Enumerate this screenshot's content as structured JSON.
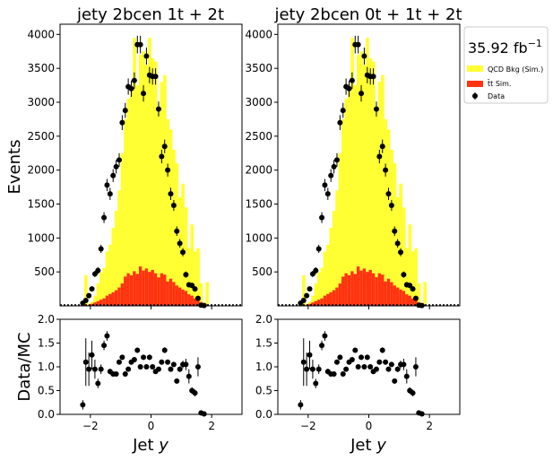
{
  "colors": {
    "qcd": "#ffff33",
    "ttbar": "#ff3311",
    "data": "#000000"
  },
  "figure": {
    "ylabel_main": "Events",
    "ylabel_ratio": "Data/MC",
    "lumi": "35.92 fb",
    "lumi_sup": "−1"
  },
  "legend": {
    "placement": "right-outside",
    "entries": [
      {
        "label": "QCD Bkg (Sim.)",
        "kind": "fill",
        "color": "#ffff33"
      },
      {
        "label": "t̄t Sim.",
        "kind": "fill",
        "color": "#ff3311"
      },
      {
        "label": "Data",
        "kind": "marker",
        "color": "#000000"
      }
    ]
  },
  "chart_data": [
    {
      "type": "bar",
      "title": "jety  2bcen 1t + 2t",
      "xlabel": "Jet y",
      "xlim": [
        -3,
        3
      ],
      "ylim": [
        0,
        4150
      ],
      "ratio_ylim": [
        0,
        2
      ],
      "x_ticks": [
        "−2",
        "0",
        "2"
      ],
      "y_ticks": [
        "500",
        "1000",
        "1500",
        "2000",
        "2500",
        "3000",
        "3500",
        "4000"
      ],
      "ratio_y_ticks": [
        "0.0",
        "0.5",
        "1.0",
        "1.5",
        "2.0"
      ],
      "bin_edges_x": [
        -3.0,
        3.0
      ],
      "bin_width": 0.1,
      "qcd_total": [
        0,
        0,
        0,
        0,
        0,
        0,
        0,
        0,
        450,
        30,
        60,
        150,
        330,
        490,
        560,
        800,
        900,
        1150,
        1400,
        1700,
        2250,
        2750,
        3050,
        3150,
        3950,
        3250,
        3700,
        3750,
        3550,
        3950,
        3650,
        3600,
        2850,
        3300,
        3400,
        2750,
        2600,
        2300,
        2100,
        1600,
        1800,
        1450,
        850,
        1200,
        800,
        850,
        330,
        0,
        350,
        0,
        0,
        0,
        0,
        0,
        0,
        0,
        0,
        0,
        0,
        0
      ],
      "ttbar": [
        0,
        0,
        0,
        0,
        0,
        0,
        0,
        0,
        10,
        15,
        30,
        50,
        70,
        90,
        110,
        150,
        175,
        200,
        230,
        270,
        330,
        430,
        480,
        450,
        510,
        470,
        580,
        520,
        550,
        500,
        530,
        480,
        420,
        480,
        460,
        360,
        400,
        350,
        300,
        270,
        240,
        220,
        170,
        150,
        110,
        80,
        50,
        20,
        20,
        0,
        0,
        0,
        0,
        0,
        0,
        0,
        0,
        0,
        0,
        0
      ],
      "data_points": [
        {
          "x": -2.25,
          "y": 40,
          "err": 20,
          "r": 0.2,
          "rerr": 0.1
        },
        {
          "x": -2.15,
          "y": 80,
          "err": 25,
          "r": 1.1,
          "rerr": 0.5
        },
        {
          "x": -2.05,
          "y": 150,
          "err": 30,
          "r": 0.95,
          "rerr": 0.35
        },
        {
          "x": -1.95,
          "y": 250,
          "err": 35,
          "r": 1.25,
          "rerr": 0.3
        },
        {
          "x": -1.85,
          "y": 470,
          "err": 45,
          "r": 0.95,
          "rerr": 0.2
        },
        {
          "x": -1.75,
          "y": 520,
          "err": 50,
          "r": 0.65,
          "rerr": 0.1
        },
        {
          "x": -1.65,
          "y": 840,
          "err": 60,
          "r": 0.95,
          "rerr": 0.1
        },
        {
          "x": -1.55,
          "y": 1300,
          "err": 80,
          "r": 1.45,
          "rerr": 0.1
        },
        {
          "x": -1.45,
          "y": 1780,
          "err": 90,
          "r": 1.65,
          "rerr": 0.1
        },
        {
          "x": -1.35,
          "y": 1650,
          "err": 90,
          "r": 0.9,
          "rerr": 0.06
        },
        {
          "x": -1.25,
          "y": 1920,
          "err": 95,
          "r": 0.85,
          "rerr": 0.05
        },
        {
          "x": -1.15,
          "y": 2050,
          "err": 100,
          "r": 0.85,
          "rerr": 0.05
        },
        {
          "x": -1.05,
          "y": 2150,
          "err": 100,
          "r": 1.1,
          "rerr": 0.05
        },
        {
          "x": -0.95,
          "y": 2700,
          "err": 110,
          "r": 1.2,
          "rerr": 0.05
        },
        {
          "x": -0.85,
          "y": 2880,
          "err": 110,
          "r": 0.85,
          "rerr": 0.05
        },
        {
          "x": -0.75,
          "y": 3230,
          "err": 120,
          "r": 0.95,
          "rerr": 0.05
        },
        {
          "x": -0.65,
          "y": 3200,
          "err": 120,
          "r": 1.1,
          "rerr": 0.05
        },
        {
          "x": -0.55,
          "y": 3320,
          "err": 120,
          "r": 1.15,
          "rerr": 0.05
        },
        {
          "x": -0.45,
          "y": 3850,
          "err": 130,
          "r": 1.35,
          "rerr": 0.05
        },
        {
          "x": -0.35,
          "y": 3850,
          "err": 130,
          "r": 1.0,
          "rerr": 0.04
        },
        {
          "x": -0.25,
          "y": 3130,
          "err": 120,
          "r": 1.2,
          "rerr": 0.05
        },
        {
          "x": -0.15,
          "y": 3680,
          "err": 125,
          "r": 1.0,
          "rerr": 0.04
        },
        {
          "x": -0.05,
          "y": 3400,
          "err": 120,
          "r": 1.2,
          "rerr": 0.05
        },
        {
          "x": 0.05,
          "y": 3380,
          "err": 120,
          "r": 1.0,
          "rerr": 0.04
        },
        {
          "x": 0.15,
          "y": 3380,
          "err": 120,
          "r": 0.9,
          "rerr": 0.04
        },
        {
          "x": 0.25,
          "y": 2900,
          "err": 110,
          "r": 0.95,
          "rerr": 0.04
        },
        {
          "x": 0.35,
          "y": 2200,
          "err": 100,
          "r": 1.1,
          "rerr": 0.05
        },
        {
          "x": 0.45,
          "y": 2350,
          "err": 100,
          "r": 1.35,
          "rerr": 0.06
        },
        {
          "x": 0.55,
          "y": 2000,
          "err": 95,
          "r": 1.1,
          "rerr": 0.05
        },
        {
          "x": 0.65,
          "y": 1650,
          "err": 90,
          "r": 0.95,
          "rerr": 0.05
        },
        {
          "x": 0.75,
          "y": 1480,
          "err": 80,
          "r": 1.05,
          "rerr": 0.05
        },
        {
          "x": 0.85,
          "y": 1100,
          "err": 70,
          "r": 0.7,
          "rerr": 0.05
        },
        {
          "x": 0.95,
          "y": 920,
          "err": 65,
          "r": 0.95,
          "rerr": 0.06
        },
        {
          "x": 1.05,
          "y": 790,
          "err": 60,
          "r": 1.05,
          "rerr": 0.08
        },
        {
          "x": 1.15,
          "y": 460,
          "err": 45,
          "r": 1.05,
          "rerr": 0.12
        },
        {
          "x": 1.25,
          "y": 310,
          "err": 40,
          "r": 0.8,
          "rerr": 0.15
        },
        {
          "x": 1.35,
          "y": 300,
          "err": 40,
          "r": 0.5,
          "rerr": 0.07
        },
        {
          "x": 1.45,
          "y": 250,
          "err": 35,
          "r": 0.45,
          "rerr": 0.07
        },
        {
          "x": 1.55,
          "y": 110,
          "err": 25,
          "r": 1.0,
          "rerr": 0.2
        },
        {
          "x": 1.65,
          "y": 10,
          "err": 5,
          "r": 0.03,
          "rerr": 0.03
        },
        {
          "x": 1.75,
          "y": 5,
          "err": 3,
          "r": 0.01,
          "rerr": 0.01
        }
      ]
    },
    {
      "type": "bar",
      "title": "jety  2bcen 0t + 1t + 2t",
      "xlabel": "Jet y",
      "xlim": [
        -3,
        3
      ],
      "ylim": [
        0,
        4150
      ],
      "ratio_ylim": [
        0,
        2
      ],
      "x_ticks": [
        "−2",
        "0",
        "2"
      ],
      "y_ticks": [
        "500",
        "1000",
        "1500",
        "2000",
        "2500",
        "3000",
        "3500",
        "4000"
      ],
      "ratio_y_ticks": [
        "0.0",
        "0.5",
        "1.0",
        "1.5",
        "2.0"
      ],
      "bin_edges_x": [
        -3.0,
        3.0
      ],
      "bin_width": 0.1,
      "qcd_total": [
        0,
        0,
        0,
        0,
        0,
        0,
        0,
        0,
        450,
        30,
        60,
        150,
        330,
        490,
        560,
        800,
        900,
        1150,
        1400,
        1700,
        2250,
        2750,
        3050,
        3150,
        3950,
        3250,
        3700,
        3750,
        3550,
        3950,
        3650,
        3600,
        2850,
        3300,
        3400,
        2750,
        2600,
        2300,
        2100,
        1600,
        1800,
        1450,
        850,
        1200,
        800,
        850,
        330,
        0,
        350,
        0,
        0,
        0,
        0,
        0,
        0,
        0,
        0,
        0,
        0,
        0
      ],
      "ttbar": [
        0,
        0,
        0,
        0,
        0,
        0,
        0,
        0,
        10,
        15,
        30,
        50,
        70,
        90,
        110,
        150,
        175,
        200,
        230,
        270,
        330,
        430,
        480,
        450,
        510,
        470,
        580,
        520,
        550,
        500,
        530,
        480,
        420,
        480,
        460,
        360,
        400,
        350,
        300,
        270,
        240,
        220,
        170,
        150,
        110,
        80,
        50,
        20,
        20,
        0,
        0,
        0,
        0,
        0,
        0,
        0,
        0,
        0,
        0,
        0
      ],
      "data_points": [
        {
          "x": -2.25,
          "y": 40,
          "err": 20,
          "r": 0.2,
          "rerr": 0.1
        },
        {
          "x": -2.15,
          "y": 80,
          "err": 25,
          "r": 1.1,
          "rerr": 0.5
        },
        {
          "x": -2.05,
          "y": 150,
          "err": 30,
          "r": 0.95,
          "rerr": 0.35
        },
        {
          "x": -1.95,
          "y": 250,
          "err": 35,
          "r": 1.25,
          "rerr": 0.3
        },
        {
          "x": -1.85,
          "y": 470,
          "err": 45,
          "r": 0.95,
          "rerr": 0.2
        },
        {
          "x": -1.75,
          "y": 520,
          "err": 50,
          "r": 0.65,
          "rerr": 0.1
        },
        {
          "x": -1.65,
          "y": 840,
          "err": 60,
          "r": 0.95,
          "rerr": 0.1
        },
        {
          "x": -1.55,
          "y": 1300,
          "err": 80,
          "r": 1.45,
          "rerr": 0.1
        },
        {
          "x": -1.45,
          "y": 1780,
          "err": 90,
          "r": 1.65,
          "rerr": 0.1
        },
        {
          "x": -1.35,
          "y": 1650,
          "err": 90,
          "r": 0.9,
          "rerr": 0.06
        },
        {
          "x": -1.25,
          "y": 1920,
          "err": 95,
          "r": 0.85,
          "rerr": 0.05
        },
        {
          "x": -1.15,
          "y": 2050,
          "err": 100,
          "r": 0.85,
          "rerr": 0.05
        },
        {
          "x": -1.05,
          "y": 2150,
          "err": 100,
          "r": 1.1,
          "rerr": 0.05
        },
        {
          "x": -0.95,
          "y": 2700,
          "err": 110,
          "r": 1.2,
          "rerr": 0.05
        },
        {
          "x": -0.85,
          "y": 2880,
          "err": 110,
          "r": 0.85,
          "rerr": 0.05
        },
        {
          "x": -0.75,
          "y": 3230,
          "err": 120,
          "r": 0.95,
          "rerr": 0.05
        },
        {
          "x": -0.65,
          "y": 3200,
          "err": 120,
          "r": 1.1,
          "rerr": 0.05
        },
        {
          "x": -0.55,
          "y": 3320,
          "err": 120,
          "r": 1.15,
          "rerr": 0.05
        },
        {
          "x": -0.45,
          "y": 3850,
          "err": 130,
          "r": 1.35,
          "rerr": 0.05
        },
        {
          "x": -0.35,
          "y": 3850,
          "err": 130,
          "r": 1.0,
          "rerr": 0.04
        },
        {
          "x": -0.25,
          "y": 3130,
          "err": 120,
          "r": 1.2,
          "rerr": 0.05
        },
        {
          "x": -0.15,
          "y": 3680,
          "err": 125,
          "r": 1.0,
          "rerr": 0.04
        },
        {
          "x": -0.05,
          "y": 3400,
          "err": 120,
          "r": 1.2,
          "rerr": 0.05
        },
        {
          "x": 0.05,
          "y": 3380,
          "err": 120,
          "r": 1.0,
          "rerr": 0.04
        },
        {
          "x": 0.15,
          "y": 3380,
          "err": 120,
          "r": 0.9,
          "rerr": 0.04
        },
        {
          "x": 0.25,
          "y": 2900,
          "err": 110,
          "r": 0.95,
          "rerr": 0.04
        },
        {
          "x": 0.35,
          "y": 2200,
          "err": 100,
          "r": 1.1,
          "rerr": 0.05
        },
        {
          "x": 0.45,
          "y": 2350,
          "err": 100,
          "r": 1.35,
          "rerr": 0.06
        },
        {
          "x": 0.55,
          "y": 2000,
          "err": 95,
          "r": 1.1,
          "rerr": 0.05
        },
        {
          "x": 0.65,
          "y": 1650,
          "err": 90,
          "r": 0.95,
          "rerr": 0.05
        },
        {
          "x": 0.75,
          "y": 1480,
          "err": 80,
          "r": 1.05,
          "rerr": 0.05
        },
        {
          "x": 0.85,
          "y": 1100,
          "err": 70,
          "r": 0.7,
          "rerr": 0.05
        },
        {
          "x": 0.95,
          "y": 920,
          "err": 65,
          "r": 0.95,
          "rerr": 0.06
        },
        {
          "x": 1.05,
          "y": 790,
          "err": 60,
          "r": 1.05,
          "rerr": 0.08
        },
        {
          "x": 1.15,
          "y": 460,
          "err": 45,
          "r": 1.05,
          "rerr": 0.12
        },
        {
          "x": 1.25,
          "y": 310,
          "err": 40,
          "r": 0.8,
          "rerr": 0.15
        },
        {
          "x": 1.35,
          "y": 300,
          "err": 40,
          "r": 0.5,
          "rerr": 0.07
        },
        {
          "x": 1.45,
          "y": 250,
          "err": 35,
          "r": 0.45,
          "rerr": 0.07
        },
        {
          "x": 1.55,
          "y": 110,
          "err": 25,
          "r": 1.0,
          "rerr": 0.2
        },
        {
          "x": 1.65,
          "y": 10,
          "err": 5,
          "r": 0.03,
          "rerr": 0.03
        },
        {
          "x": 1.75,
          "y": 5,
          "err": 3,
          "r": 0.01,
          "rerr": 0.01
        }
      ]
    }
  ]
}
